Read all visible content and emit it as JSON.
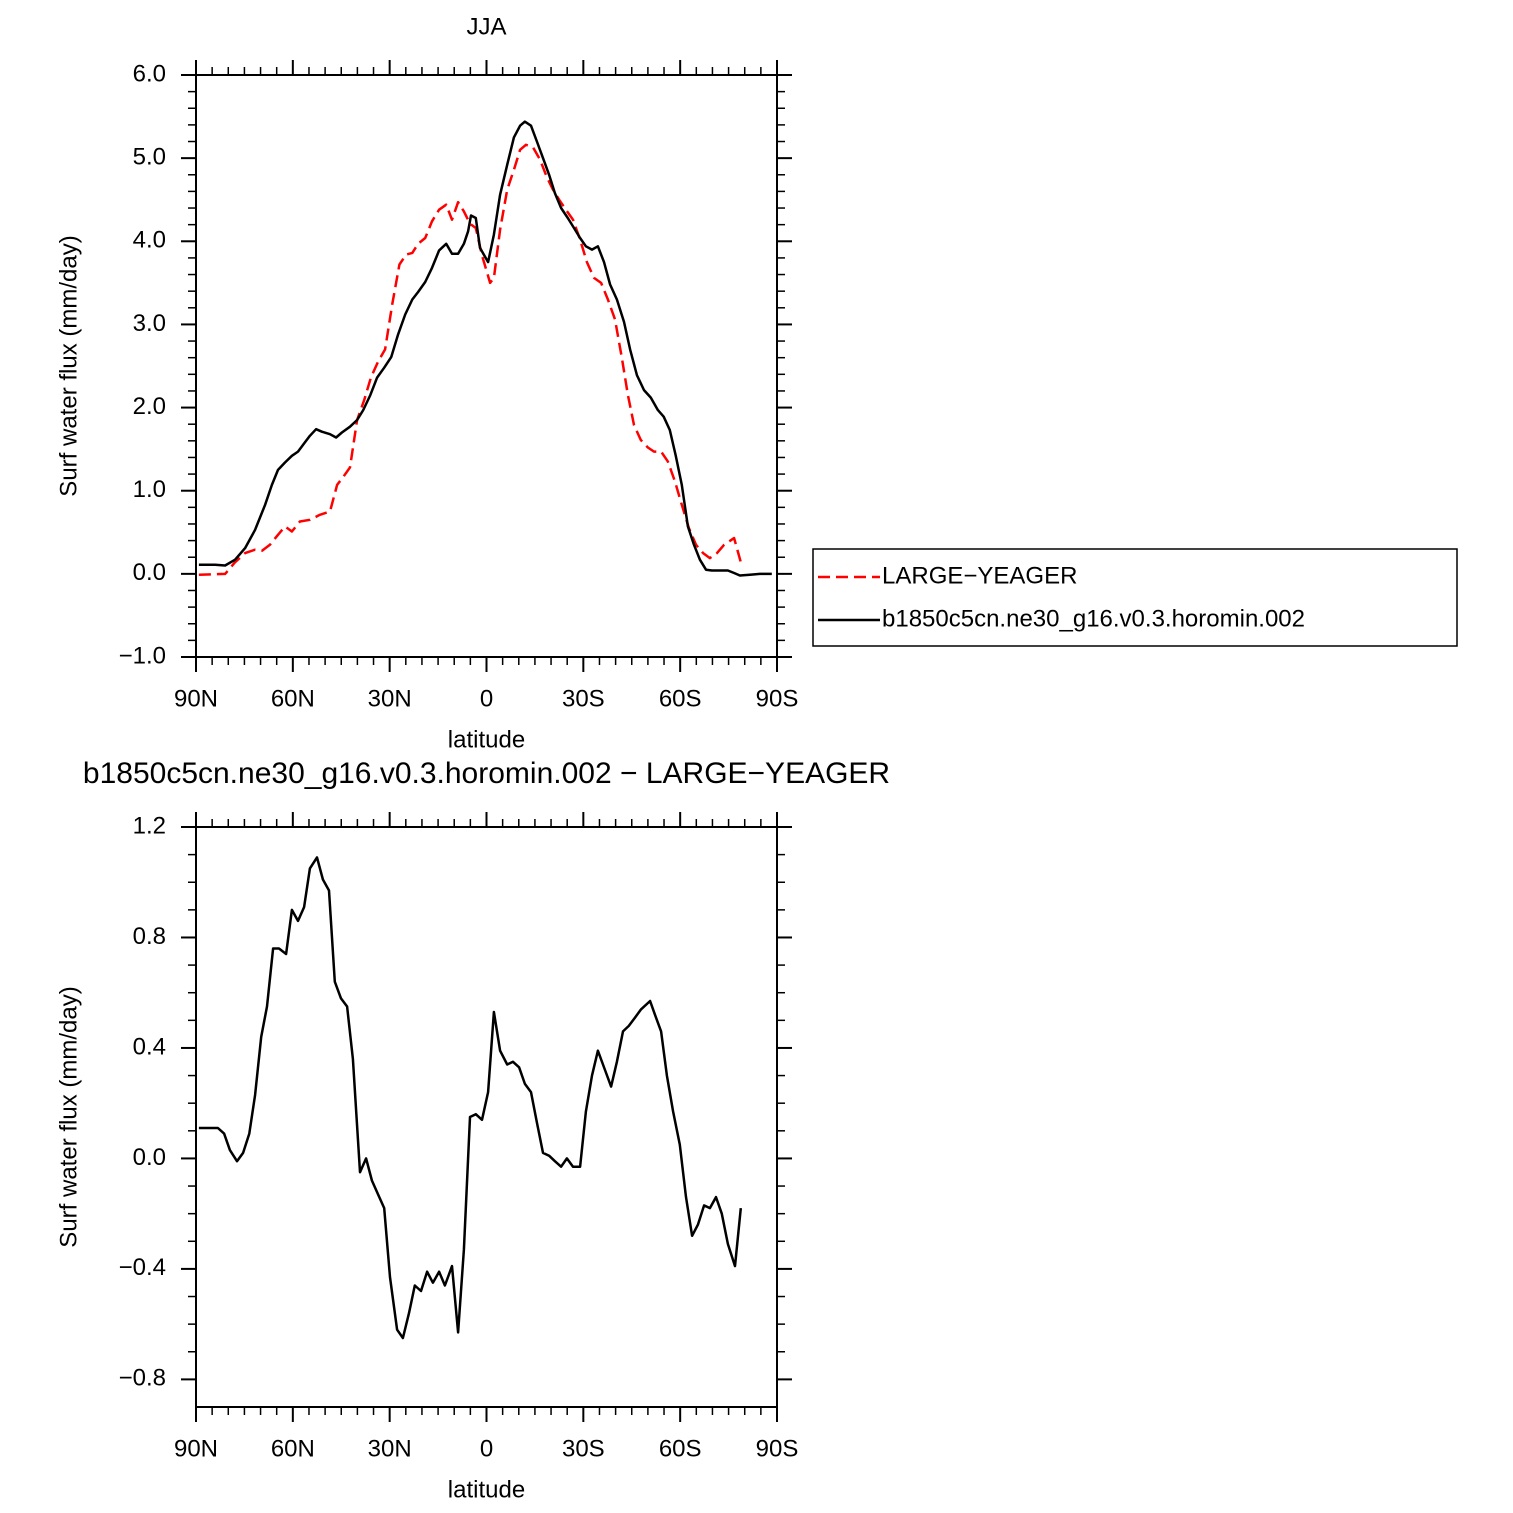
{
  "chart_data": [
    {
      "type": "line",
      "title": "JJA",
      "xlabel": "latitude",
      "ylabel": "Surf water flux (mm/day)",
      "xlim": [
        90,
        -90
      ],
      "xticks": [
        {
          "value": 90,
          "label": "90N"
        },
        {
          "value": 60,
          "label": "60N"
        },
        {
          "value": 30,
          "label": "30N"
        },
        0,
        {
          "value": -30,
          "label": "30S"
        },
        {
          "value": -60,
          "label": "60S"
        },
        {
          "value": -90,
          "label": "90S"
        }
      ],
      "ylim": [
        -1,
        6
      ],
      "yticks": [
        {
          "value": -1,
          "label": "−1.0"
        },
        {
          "value": 0,
          "label": "0.0"
        },
        {
          "value": 1,
          "label": "1.0"
        },
        {
          "value": 2,
          "label": "2.0"
        },
        {
          "value": 3,
          "label": "3.0"
        },
        {
          "value": 4,
          "label": "4.0"
        },
        {
          "value": 5,
          "label": "5.0"
        },
        {
          "value": 6,
          "label": "6.0"
        }
      ],
      "legend": "outside-right",
      "series": [
        {
          "name": "LARGE−YEAGER",
          "color": "#ff0000",
          "style": "dashed",
          "x": [
            89.1,
            81.0,
            77.9,
            74.8,
            71.7,
            69.5,
            67.1,
            64.6,
            62.4,
            60.3,
            57.8,
            54.7,
            51.6,
            48.5,
            46.3,
            44.5,
            42.3,
            40.1,
            37.9,
            35.8,
            33.6,
            31.4,
            29.2,
            27.0,
            24.9,
            23.0,
            21.2,
            19.0,
            16.9,
            14.7,
            12.5,
            10.7,
            8.8,
            7.0,
            5.1,
            3.3,
            1.4,
            -1.1,
            -2.3,
            -4.2,
            -6.4,
            -8.5,
            -10.4,
            -12.2,
            -14.4,
            -16.6,
            -18.7,
            -20.6,
            -22.5,
            -24.6,
            -26.8,
            -29.0,
            -31.1,
            -33.3,
            -35.5,
            -37.6,
            -39.8,
            -42.0,
            -43.8,
            -45.7,
            -47.8,
            -50.0,
            -51.9,
            -54.1,
            -56.2,
            -58.4,
            -60.5,
            -62.7,
            -64.9,
            -67.1,
            -69.2,
            -71.4,
            -73.6,
            -76.7,
            -78.8
          ],
          "values": [
            -0.01,
            0.0,
            0.14,
            0.25,
            0.29,
            0.28,
            0.35,
            0.47,
            0.57,
            0.51,
            0.63,
            0.65,
            0.71,
            0.75,
            1.07,
            1.16,
            1.28,
            1.85,
            2.09,
            2.36,
            2.55,
            2.7,
            3.24,
            3.72,
            3.84,
            3.86,
            3.97,
            4.04,
            4.24,
            4.38,
            4.44,
            4.26,
            4.47,
            4.36,
            4.21,
            4.16,
            3.83,
            3.5,
            3.56,
            4.14,
            4.62,
            4.86,
            5.1,
            5.16,
            5.13,
            4.98,
            4.77,
            4.62,
            4.5,
            4.38,
            4.26,
            4.02,
            3.75,
            3.56,
            3.5,
            3.3,
            3.06,
            2.58,
            2.15,
            1.79,
            1.61,
            1.52,
            1.47,
            1.47,
            1.35,
            1.11,
            0.83,
            0.55,
            0.35,
            0.25,
            0.19,
            0.25,
            0.35,
            0.43,
            0.14
          ]
        },
        {
          "name": "b1850c5cn.ne30_g16.v0.3.horomin.002",
          "color": "#000000",
          "style": "solid",
          "x": [
            89.1,
            84.1,
            81.0,
            77.9,
            74.8,
            71.7,
            68.6,
            66.5,
            64.6,
            62.4,
            60.3,
            58.4,
            56.3,
            54.7,
            52.8,
            51.0,
            48.5,
            46.6,
            44.8,
            42.3,
            40.1,
            38.2,
            36.0,
            33.9,
            31.7,
            29.5,
            27.4,
            25.2,
            23.0,
            21.2,
            19.0,
            16.9,
            14.7,
            12.5,
            10.7,
            8.8,
            7.0,
            5.7,
            4.8,
            3.3,
            2.0,
            -0.5,
            -2.3,
            -4.2,
            -6.4,
            -8.5,
            -10.4,
            -11.9,
            -13.8,
            -15.6,
            -17.5,
            -19.4,
            -21.2,
            -23.1,
            -25.2,
            -27.1,
            -29.0,
            -30.8,
            -32.7,
            -34.5,
            -36.4,
            -38.3,
            -40.4,
            -42.6,
            -44.5,
            -46.6,
            -48.8,
            -50.9,
            -53.1,
            -54.9,
            -56.8,
            -58.6,
            -60.5,
            -62.4,
            -64.3,
            -66.1,
            -68.0,
            -69.8,
            -71.7,
            -74.8,
            -76.7,
            -78.5,
            -81.6,
            -84.7,
            -88.4
          ],
          "values": [
            0.11,
            0.11,
            0.1,
            0.17,
            0.31,
            0.53,
            0.83,
            1.07,
            1.25,
            1.34,
            1.42,
            1.47,
            1.58,
            1.66,
            1.74,
            1.71,
            1.68,
            1.64,
            1.7,
            1.77,
            1.85,
            1.97,
            2.15,
            2.36,
            2.48,
            2.61,
            2.88,
            3.12,
            3.3,
            3.39,
            3.51,
            3.68,
            3.89,
            3.97,
            3.85,
            3.85,
            3.97,
            4.12,
            4.31,
            4.28,
            3.92,
            3.75,
            4.08,
            4.56,
            4.92,
            5.25,
            5.39,
            5.44,
            5.39,
            5.2,
            5.0,
            4.8,
            4.58,
            4.4,
            4.28,
            4.16,
            4.04,
            3.94,
            3.9,
            3.94,
            3.75,
            3.48,
            3.3,
            3.03,
            2.7,
            2.39,
            2.21,
            2.12,
            1.97,
            1.89,
            1.73,
            1.43,
            1.07,
            0.57,
            0.35,
            0.17,
            0.05,
            0.04,
            0.04,
            0.04,
            0.01,
            -0.02,
            -0.01,
            0.0,
            0.0
          ]
        }
      ]
    },
    {
      "type": "line",
      "title": "b1850c5cn.ne30_g16.v0.3.horomin.002 − LARGE−YEAGER",
      "xlabel": "latitude",
      "ylabel": "Surf water flux (mm/day)",
      "xlim": [
        90,
        -90
      ],
      "xticks": [
        {
          "value": 90,
          "label": "90N"
        },
        {
          "value": 60,
          "label": "60N"
        },
        {
          "value": 30,
          "label": "30N"
        },
        0,
        {
          "value": -30,
          "label": "30S"
        },
        {
          "value": -60,
          "label": "60S"
        },
        {
          "value": -90,
          "label": "90S"
        }
      ],
      "ylim": [
        -0.9,
        1.2
      ],
      "yticks": [
        {
          "value": -0.8,
          "label": "−0.8"
        },
        {
          "value": -0.4,
          "label": "−0.4"
        },
        {
          "value": 0,
          "label": "0.0"
        },
        0.4,
        0.8,
        1.2
      ],
      "series": [
        {
          "color": "#000000",
          "style": "solid",
          "x": [
            89.1,
            85.7,
            83.2,
            81.3,
            79.5,
            77.3,
            75.4,
            73.5,
            71.7,
            69.8,
            68.0,
            66.1,
            64.3,
            62.1,
            60.3,
            58.4,
            56.5,
            54.7,
            52.5,
            50.7,
            48.8,
            47.0,
            45.1,
            43.2,
            41.4,
            39.2,
            37.3,
            35.5,
            33.6,
            31.7,
            29.9,
            27.7,
            25.9,
            24.0,
            22.2,
            20.3,
            18.4,
            16.6,
            14.7,
            12.9,
            10.7,
            8.8,
            7.0,
            5.1,
            3.3,
            1.4,
            -0.5,
            -2.3,
            -4.2,
            -6.4,
            -8.2,
            -10.1,
            -11.9,
            -13.8,
            -15.6,
            -17.5,
            -19.4,
            -21.2,
            -23.1,
            -24.9,
            -26.8,
            -29.0,
            -30.8,
            -32.7,
            -34.5,
            -36.7,
            -38.6,
            -40.4,
            -42.3,
            -44.1,
            -46.0,
            -47.9,
            -50.7,
            -52.2,
            -54.1,
            -55.9,
            -57.8,
            -59.9,
            -61.8,
            -63.7,
            -65.5,
            -67.4,
            -69.2,
            -71.1,
            -72.9,
            -74.8,
            -77.0,
            -78.8
          ],
          "values": [
            0.11,
            0.11,
            0.11,
            0.09,
            0.03,
            -0.01,
            0.02,
            0.09,
            0.23,
            0.44,
            0.55,
            0.76,
            0.76,
            0.74,
            0.9,
            0.86,
            0.91,
            1.05,
            1.09,
            1.01,
            0.97,
            0.64,
            0.58,
            0.55,
            0.36,
            -0.05,
            0.0,
            -0.08,
            -0.13,
            -0.18,
            -0.43,
            -0.62,
            -0.65,
            -0.56,
            -0.46,
            -0.48,
            -0.41,
            -0.45,
            -0.41,
            -0.46,
            -0.39,
            -0.63,
            -0.33,
            0.15,
            0.16,
            0.14,
            0.24,
            0.53,
            0.39,
            0.34,
            0.35,
            0.33,
            0.27,
            0.24,
            0.13,
            0.02,
            0.01,
            -0.01,
            -0.03,
            0.0,
            -0.03,
            -0.03,
            0.17,
            0.3,
            0.39,
            0.32,
            0.26,
            0.35,
            0.46,
            0.48,
            0.51,
            0.54,
            0.57,
            0.52,
            0.46,
            0.3,
            0.17,
            0.05,
            -0.14,
            -0.28,
            -0.24,
            -0.17,
            -0.18,
            -0.14,
            -0.2,
            -0.31,
            -0.39,
            -0.18
          ]
        }
      ]
    }
  ]
}
